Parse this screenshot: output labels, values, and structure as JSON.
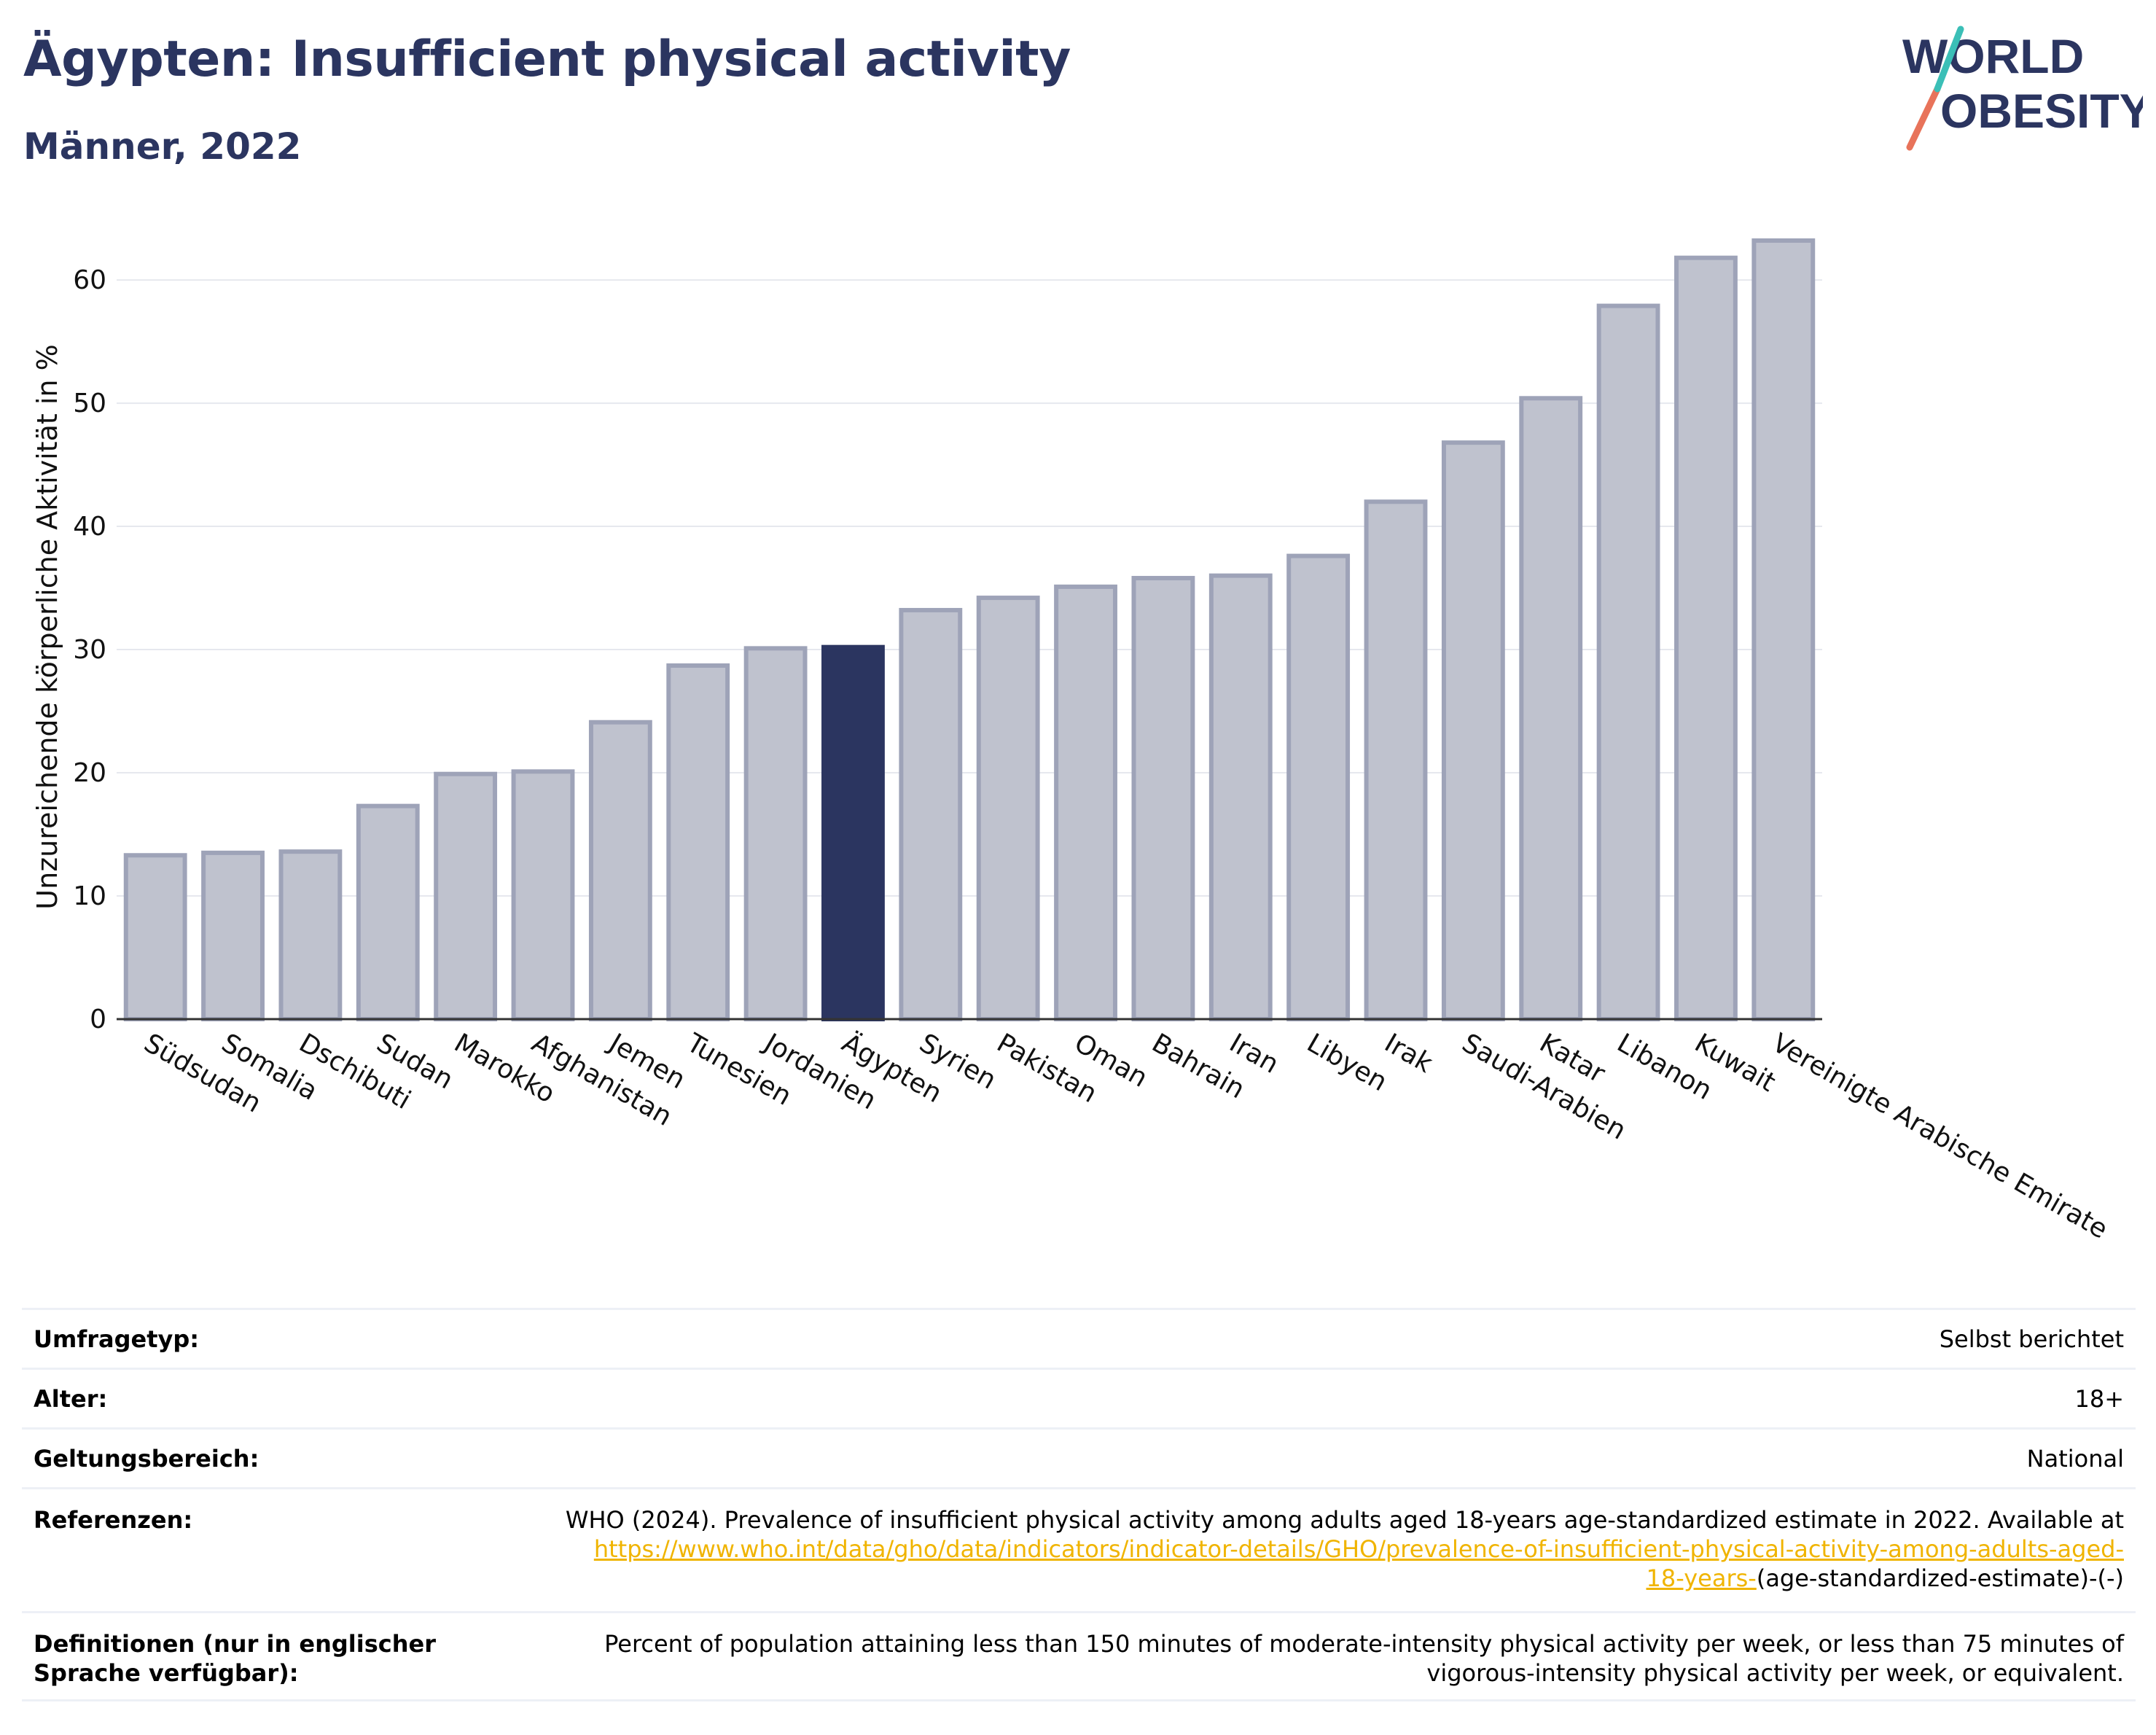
{
  "header": {
    "title": "Ägypten: Insufficient physical activity",
    "subtitle": "Männer, 2022"
  },
  "logo": {
    "line1": "WORLD",
    "line2": "OBESITY"
  },
  "colors": {
    "bar": "#bfc2ce",
    "bar_stroke": "#9ea3b8",
    "highlight": "#2b3560",
    "grid": "#e6e8ee",
    "link": "#f0b400"
  },
  "chart_data": {
    "type": "bar",
    "ylabel": "Unzureichende körperliche Aktivität in %",
    "ylim": [
      0,
      65
    ],
    "yticks": [
      0,
      10,
      20,
      30,
      40,
      50,
      60
    ],
    "grid": true,
    "highlight": "Ägypten",
    "categories": [
      "Südsudan",
      "Somalia",
      "Dschibuti",
      "Sudan",
      "Marokko",
      "Afghanistan",
      "Jemen",
      "Tunesien",
      "Jordanien",
      "Ägypten",
      "Syrien",
      "Pakistan",
      "Oman",
      "Bahrain",
      "Iran",
      "Libyen",
      "Irak",
      "Saudi-Arabien",
      "Katar",
      "Libanon",
      "Kuwait",
      "Vereinigte Arabische Emirate"
    ],
    "values": [
      13.3,
      13.5,
      13.6,
      17.3,
      19.9,
      20.1,
      24.1,
      28.7,
      30.1,
      30.2,
      33.2,
      34.2,
      35.1,
      35.8,
      36.0,
      37.6,
      42.0,
      46.8,
      50.4,
      57.9,
      61.8,
      63.2
    ]
  },
  "info": {
    "rows": [
      {
        "label": "Umfragetyp:",
        "value": "Selbst berichtet"
      },
      {
        "label": "Alter:",
        "value": "18+"
      },
      {
        "label": "Geltungsbereich:",
        "value": "National"
      }
    ],
    "references": {
      "label": "Referenzen:",
      "text": "WHO (2024). Prevalence of insufficient physical activity among adults aged 18-years age-standardized estimate in 2022. Available at",
      "link": "https://www.who.int/data/gho/data/indicators/indicator-details/GHO/prevalence-of-insufficient-physical-activity-among-adults-aged-18-years-",
      "suffix": "(age-standardized-estimate)-(-)"
    },
    "definitions": {
      "label": "Definitionen (nur in englischer Sprache verfügbar):",
      "value": "Percent of population attaining less than 150 minutes of moderate-intensity physical activity per week, or less than 75 minutes of vigorous-intensity physical activity per week, or equivalent."
    }
  }
}
